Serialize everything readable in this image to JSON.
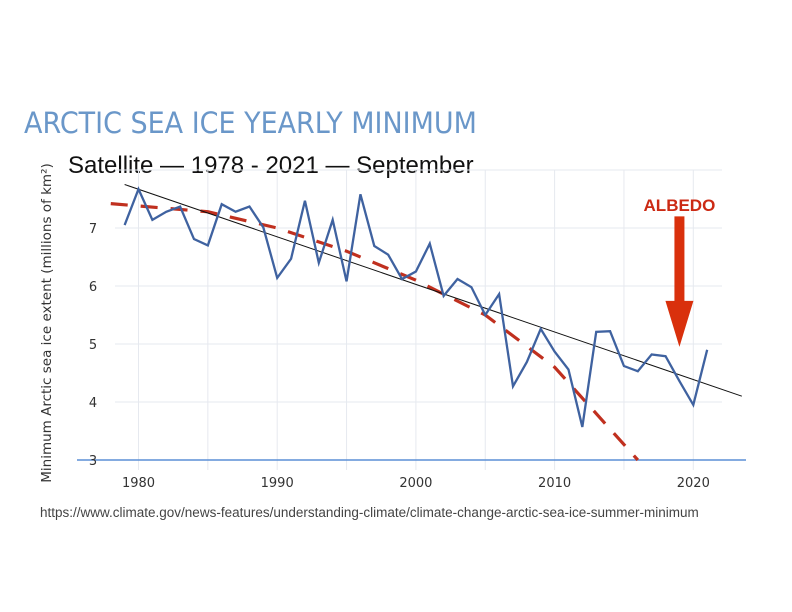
{
  "header": {
    "title": "ARCTIC SEA ICE YEARLY MINIMUM",
    "subtitle": "Satellite — 1978 - 2021 — September"
  },
  "footer": {
    "source": "https://www.climate.gov/news-features/understanding-climate/climate-change-arctic-sea-ice-summer-minimum"
  },
  "colors": {
    "title": "#6a97c9",
    "series": "#3f62a0",
    "trend": "#111111",
    "projection": "#c0301f",
    "annotation": "#d9300c",
    "baseline": "#5b8fd6",
    "grid": "#e6e9ef"
  },
  "chart_data": {
    "type": "line",
    "title": "ARCTIC SEA ICE YEARLY MINIMUM",
    "subtitle": "Satellite — 1978 - 2021 — September",
    "xlabel": "",
    "ylabel": "Minimum Arctic sea ice extent (millions of km²)",
    "xlim": [
      1976.5,
      2024
    ],
    "ylim": [
      3,
      8
    ],
    "x_ticks": [
      1980,
      1990,
      2000,
      2010,
      2020
    ],
    "x_tick_labels": [
      "1980",
      "1990",
      "2000",
      "2010",
      "2020"
    ],
    "y_ticks": [
      3,
      4,
      5,
      6,
      7
    ],
    "y_tick_labels": [
      "3",
      "4",
      "5",
      "6",
      "7"
    ],
    "grid": true,
    "series": [
      {
        "name": "Minimum sea ice extent",
        "style": "solid",
        "x": [
          1979,
          1980,
          1981,
          1982,
          1983,
          1984,
          1985,
          1986,
          1987,
          1988,
          1989,
          1990,
          1991,
          1992,
          1993,
          1994,
          1995,
          1996,
          1997,
          1998,
          1999,
          2000,
          2001,
          2002,
          2003,
          2004,
          2005,
          2006,
          2007,
          2008,
          2009,
          2010,
          2011,
          2012,
          2013,
          2014,
          2015,
          2016,
          2017,
          2018,
          2019,
          2020,
          2021
        ],
        "values": [
          7.05,
          7.67,
          7.14,
          7.28,
          7.37,
          6.81,
          6.7,
          7.41,
          7.28,
          7.37,
          7.01,
          6.14,
          6.47,
          7.47,
          6.4,
          7.14,
          6.08,
          7.58,
          6.69,
          6.54,
          6.12,
          6.25,
          6.73,
          5.83,
          6.12,
          5.98,
          5.5,
          5.86,
          4.27,
          4.69,
          5.26,
          4.87,
          4.56,
          3.57,
          5.21,
          5.22,
          4.62,
          4.53,
          4.82,
          4.79,
          4.36,
          3.95,
          4.9
        ]
      },
      {
        "name": "Linear trend",
        "style": "thin-solid",
        "x": [
          1979,
          2023.5
        ],
        "values": [
          7.75,
          4.1
        ]
      },
      {
        "name": "Accelerating projection",
        "style": "dashed",
        "x": [
          1978,
          1985,
          1990,
          1995,
          2000,
          2005,
          2010,
          2016
        ],
        "values": [
          7.42,
          7.28,
          7.0,
          6.6,
          6.1,
          5.5,
          4.6,
          3.0
        ]
      }
    ],
    "annotations": [
      {
        "text": "ALBEDO",
        "type": "arrow-down",
        "x": 2019,
        "y_from": 7.2,
        "y_to": 4.95
      }
    ],
    "legend": "none"
  }
}
